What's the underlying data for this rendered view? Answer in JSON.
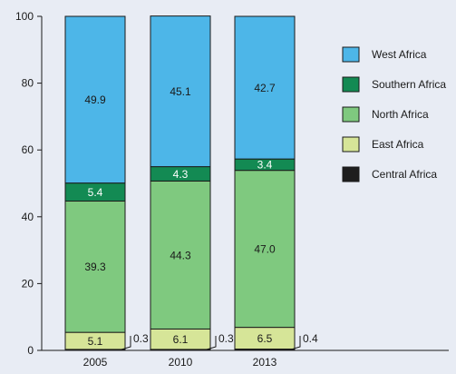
{
  "chart_data": {
    "type": "bar",
    "stacked": true,
    "categories": [
      "2005",
      "2010",
      "2013"
    ],
    "ylim": [
      0,
      100
    ],
    "yticks": [
      0,
      20,
      40,
      60,
      80,
      100
    ],
    "grid": false,
    "legend_position": "right",
    "series": [
      {
        "name": "Central Africa",
        "color": "#1e1e1e",
        "values": [
          0.3,
          0.3,
          0.4
        ],
        "labels": [
          "0.3",
          "0.3",
          "0.4"
        ]
      },
      {
        "name": "East Africa",
        "color": "#d6e598",
        "values": [
          5.1,
          6.1,
          6.5
        ],
        "labels": [
          "5.1",
          "6.1",
          "6.5"
        ]
      },
      {
        "name": "North Africa",
        "color": "#7fc97f",
        "values": [
          39.3,
          44.3,
          47.0
        ],
        "labels": [
          "39.3",
          "44.3",
          "47.0"
        ]
      },
      {
        "name": "Southern Africa",
        "color": "#138a53",
        "values": [
          5.4,
          4.3,
          3.4
        ],
        "labels": [
          "5.4",
          "4.3",
          "3.4"
        ]
      },
      {
        "name": "West Africa",
        "color": "#4db6e8",
        "values": [
          49.9,
          45.1,
          42.7
        ],
        "labels": [
          "49.9",
          "45.1",
          "42.7"
        ]
      }
    ]
  }
}
